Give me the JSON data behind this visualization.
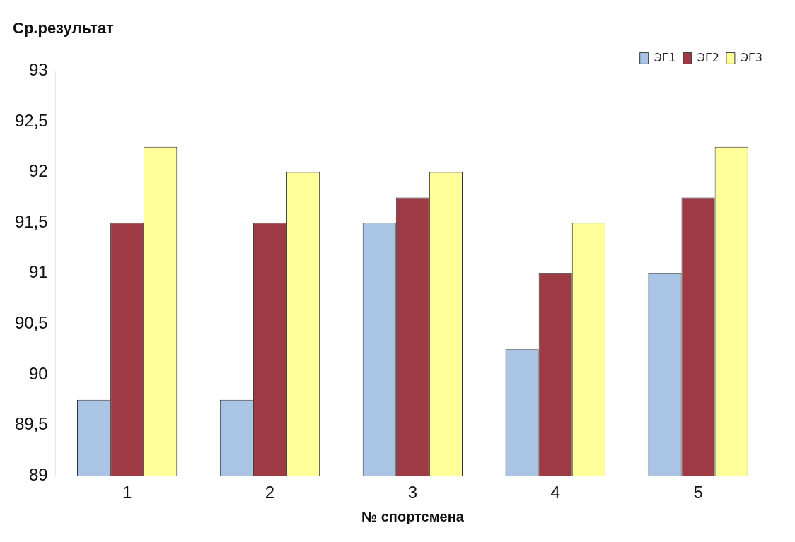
{
  "chart_data": {
    "type": "bar",
    "ylabel": "Ср.результат",
    "xlabel": "№ спортсмена",
    "categories": [
      "1",
      "2",
      "3",
      "4",
      "5"
    ],
    "series": [
      {
        "name": "ЭГ1",
        "color": "#a9c4e4",
        "values": [
          89.75,
          89.75,
          91.5,
          90.25,
          91.0
        ]
      },
      {
        "name": "ЭГ2",
        "color": "#9e3a44",
        "values": [
          91.5,
          91.5,
          91.75,
          91.0,
          91.75
        ]
      },
      {
        "name": "ЭГ3",
        "color": "#ffff99",
        "values": [
          92.25,
          92.0,
          92.0,
          91.5,
          92.25
        ]
      }
    ],
    "ylim": [
      89,
      93
    ],
    "yticks": [
      89,
      {
        "value": 89.5,
        "label": "89,5"
      },
      90,
      {
        "value": 90.5,
        "label": "90,5"
      },
      91,
      {
        "value": 91.5,
        "label": "91,5"
      },
      92,
      {
        "value": 92.5,
        "label": "92,5"
      },
      93
    ],
    "grid": "y",
    "legend": "top right"
  }
}
